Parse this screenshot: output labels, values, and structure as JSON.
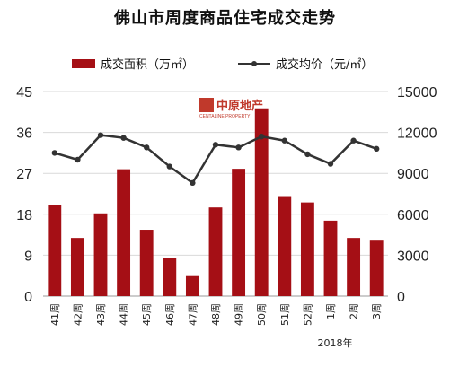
{
  "chart_data": {
    "type": "bar+line",
    "title": "佛山市周度商品住宅成交走势",
    "categories": [
      "41周",
      "42周",
      "43周",
      "44周",
      "45周",
      "46周",
      "47周",
      "48周",
      "49周",
      "50周",
      "51周",
      "52周",
      "1周",
      "2周",
      "3周"
    ],
    "series": [
      {
        "name": "成交面积（万㎡）",
        "type": "bar",
        "axis": "left",
        "values": [
          20.1,
          12.8,
          18.2,
          27.9,
          14.6,
          8.4,
          4.4,
          19.5,
          28.0,
          41.3,
          22.0,
          20.6,
          16.6,
          12.8,
          12.2
        ]
      },
      {
        "name": "成交均价（元/㎡）",
        "type": "line",
        "axis": "right",
        "values": [
          10500,
          10000,
          11800,
          11600,
          10900,
          9500,
          8300,
          11100,
          10900,
          11700,
          11400,
          10400,
          9700,
          11400,
          10800
        ]
      }
    ],
    "y_left": {
      "ticks": [
        "0",
        "9",
        "18",
        "27",
        "36",
        "45"
      ],
      "ylim": [
        0,
        45
      ]
    },
    "y_right": {
      "ticks": [
        "0",
        "3000",
        "6000",
        "9000",
        "12000",
        "15000"
      ],
      "ylim": [
        0,
        15000
      ]
    },
    "year_label": "2018年",
    "grid": true,
    "legend_position": "top",
    "colors": {
      "bar": "#a50f15",
      "line": "#333333",
      "grid": "#d9d9d9"
    }
  },
  "watermark": {
    "brand": "中原地产",
    "sub": "CENTALINE PROPERTY"
  }
}
